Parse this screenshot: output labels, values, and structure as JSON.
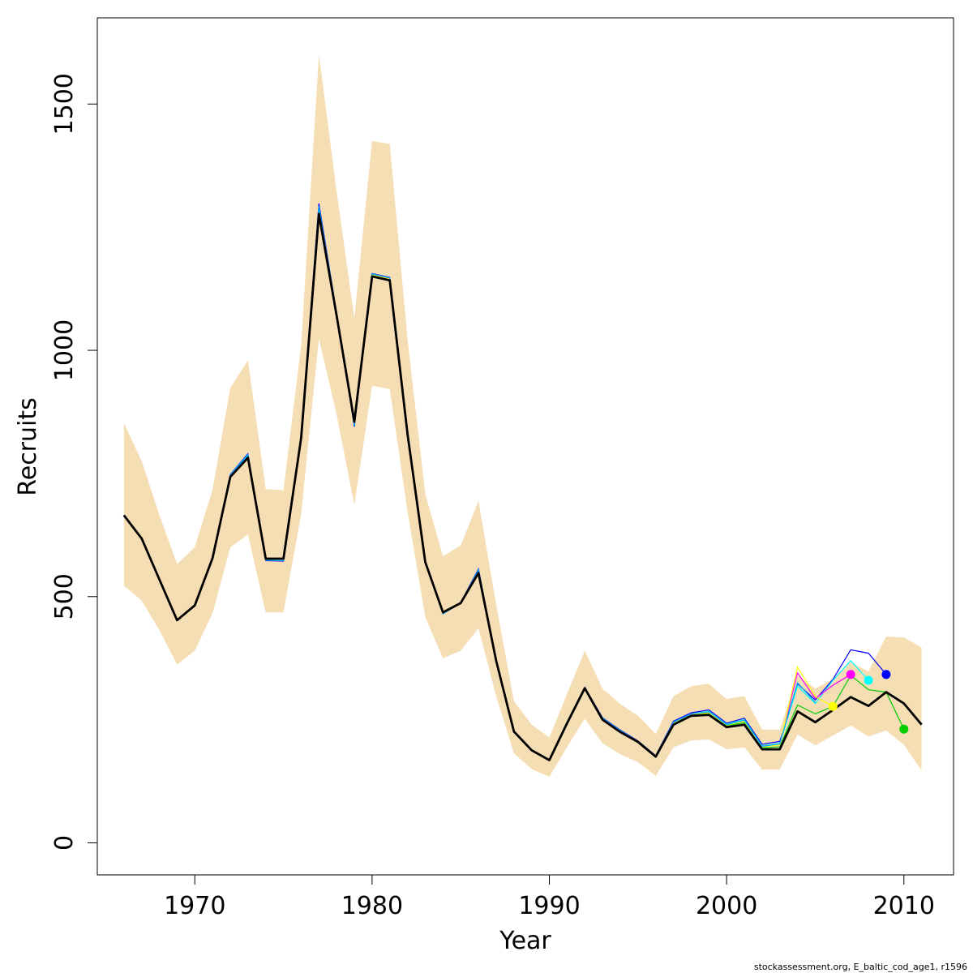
{
  "chart_data": {
    "type": "line",
    "title": "",
    "xlabel": "Year",
    "ylabel": "Recruits",
    "xlim": [
      1964.5,
      2012.8
    ],
    "ylim": [
      -65,
      1675
    ],
    "x_ticks": [
      1970,
      1980,
      1990,
      2000,
      2010
    ],
    "y_ticks": [
      0,
      500,
      1000,
      1500
    ],
    "footer": "stockassessment.org, E_baltic_cod_age1, r1596",
    "colors": {
      "band": "#f5deb3",
      "main": "#000000",
      "peels": [
        "#00cc00",
        "#0000ff",
        "#00ffff",
        "#ff00ff",
        "#ffff00",
        "#00aaff"
      ]
    },
    "years": [
      1966,
      1967,
      1968,
      1969,
      1970,
      1971,
      1972,
      1973,
      1974,
      1975,
      1976,
      1977,
      1978,
      1979,
      1980,
      1981,
      1982,
      1983,
      1984,
      1985,
      1986,
      1987,
      1988,
      1989,
      1990,
      1991,
      1992,
      1993,
      1994,
      1995,
      1996,
      1997,
      1998,
      1999,
      2000,
      2001,
      2002,
      2003,
      2004,
      2005,
      2006,
      2007,
      2008,
      2009,
      2010,
      2011
    ],
    "estimate": [
      665,
      618,
      535,
      452,
      482,
      578,
      743,
      782,
      577,
      577,
      822,
      1277,
      1070,
      855,
      1150,
      1142,
      830,
      570,
      468,
      487,
      548,
      370,
      226,
      188,
      168,
      243,
      314,
      250,
      225,
      205,
      175,
      240,
      258,
      260,
      235,
      240,
      190,
      190,
      267,
      245,
      270,
      296,
      278,
      306,
      283,
      240
    ],
    "upper": [
      852,
      775,
      666,
      566,
      600,
      717,
      923,
      980,
      718,
      716,
      1010,
      1601,
      1322,
      1065,
      1425,
      1419,
      1023,
      708,
      582,
      604,
      694,
      484,
      288,
      240,
      214,
      303,
      390,
      313,
      282,
      258,
      221,
      298,
      318,
      323,
      292,
      298,
      230,
      230,
      340,
      313,
      333,
      367,
      348,
      419,
      417,
      397
    ],
    "lower": [
      522,
      492,
      432,
      362,
      390,
      466,
      600,
      626,
      468,
      468,
      668,
      1024,
      869,
      686,
      928,
      921,
      673,
      458,
      375,
      390,
      436,
      298,
      182,
      150,
      134,
      195,
      252,
      202,
      180,
      164,
      136,
      194,
      208,
      210,
      190,
      194,
      149,
      149,
      220,
      198,
      218,
      238,
      216,
      228,
      199,
      147
    ],
    "peels": [
      {
        "years": [
          1966,
          1967,
          1968,
          1969,
          1970,
          1971,
          1972,
          1973,
          1974,
          1975,
          1976,
          1977,
          1978,
          1979,
          1980,
          1981,
          1982,
          1983,
          1984,
          1985,
          1986,
          1987,
          1988,
          1989,
          1990,
          1991,
          1992,
          1993,
          1994,
          1995,
          1996,
          1997,
          1998,
          1999,
          2000,
          2001,
          2002,
          2003,
          2004,
          2005,
          2006,
          2007,
          2008,
          2009,
          2010
        ],
        "values": [
          665,
          618,
          535,
          452,
          482,
          578,
          745,
          784,
          575,
          575,
          823,
          1280,
          1072,
          853,
          1155,
          1145,
          832,
          570,
          466,
          487,
          550,
          370,
          226,
          188,
          168,
          243,
          315,
          251,
          226,
          205,
          175,
          242,
          260,
          262,
          238,
          244,
          193,
          195,
          280,
          262,
          277,
          340,
          311,
          306,
          231
        ]
      },
      {
        "years": [
          1966,
          1967,
          1968,
          1969,
          1970,
          1971,
          1972,
          1973,
          1974,
          1975,
          1976,
          1977,
          1978,
          1979,
          1980,
          1981,
          1982,
          1983,
          1984,
          1985,
          1986,
          1987,
          1988,
          1989,
          1990,
          1991,
          1992,
          1993,
          1994,
          1995,
          1996,
          1997,
          1998,
          1999,
          2000,
          2001,
          2002,
          2003,
          2004,
          2005,
          2006,
          2007,
          2008,
          2009
        ],
        "values": [
          665,
          618,
          535,
          452,
          482,
          578,
          748,
          790,
          573,
          572,
          825,
          1298,
          1075,
          845,
          1156,
          1148,
          834,
          569,
          465,
          488,
          556,
          372,
          227,
          189,
          169,
          245,
          316,
          254,
          229,
          207,
          177,
          247,
          264,
          270,
          243,
          253,
          200,
          206,
          323,
          290,
          332,
          392,
          385,
          342
        ]
      },
      {
        "years": [
          1966,
          1967,
          1968,
          1969,
          1970,
          1971,
          1972,
          1973,
          1974,
          1975,
          1976,
          1977,
          1978,
          1979,
          1980,
          1981,
          1982,
          1983,
          1984,
          1985,
          1986,
          1987,
          1988,
          1989,
          1990,
          1991,
          1992,
          1993,
          1994,
          1995,
          1996,
          1997,
          1998,
          1999,
          2000,
          2001,
          2002,
          2003,
          2004,
          2005,
          2006,
          2007,
          2008
        ],
        "values": [
          665,
          618,
          535,
          452,
          482,
          578,
          747,
          788,
          574,
          573,
          824,
          1292,
          1074,
          848,
          1155,
          1147,
          833,
          569,
          465,
          487,
          554,
          371,
          226,
          188,
          168,
          244,
          315,
          253,
          228,
          206,
          176,
          245,
          262,
          267,
          241,
          250,
          197,
          202,
          318,
          283,
          330,
          370,
          330
        ]
      },
      {
        "years": [
          1966,
          1967,
          1968,
          1969,
          1970,
          1971,
          1972,
          1973,
          1974,
          1975,
          1976,
          1977,
          1978,
          1979,
          1980,
          1981,
          1982,
          1983,
          1984,
          1985,
          1986,
          1987,
          1988,
          1989,
          1990,
          1991,
          1992,
          1993,
          1994,
          1995,
          1996,
          1997,
          1998,
          1999,
          2000,
          2001,
          2002,
          2003,
          2004,
          2005,
          2006,
          2007
        ],
        "values": [
          665,
          618,
          535,
          452,
          482,
          578,
          746,
          786,
          574,
          574,
          823,
          1288,
          1073,
          850,
          1154,
          1146,
          832,
          570,
          466,
          487,
          552,
          371,
          226,
          188,
          168,
          244,
          315,
          252,
          227,
          206,
          176,
          244,
          262,
          265,
          240,
          248,
          196,
          200,
          345,
          293,
          320,
          342
        ]
      },
      {
        "years": [
          1966,
          1967,
          1968,
          1969,
          1970,
          1971,
          1972,
          1973,
          1974,
          1975,
          1976,
          1977,
          1978,
          1979,
          1980,
          1981,
          1982,
          1983,
          1984,
          1985,
          1986,
          1987,
          1988,
          1989,
          1990,
          1991,
          1992,
          1993,
          1994,
          1995,
          1996,
          1997,
          1998,
          1999,
          2000,
          2001,
          2002,
          2003,
          2004,
          2005,
          2006
        ],
        "values": [
          665,
          618,
          535,
          452,
          482,
          578,
          745,
          785,
          575,
          575,
          823,
          1285,
          1072,
          852,
          1153,
          1145,
          831,
          570,
          466,
          487,
          551,
          371,
          226,
          188,
          168,
          244,
          315,
          252,
          227,
          206,
          176,
          243,
          261,
          264,
          239,
          247,
          195,
          199,
          357,
          297,
          277
        ]
      },
      {
        "years": [
          1966,
          1967,
          1968,
          1969,
          1970,
          1971,
          1972,
          1973,
          1974,
          1975,
          1976,
          1977,
          1978,
          1979,
          1980,
          1981,
          1982,
          1983,
          1984,
          1985,
          1986,
          1987,
          1988,
          1989,
          1990,
          1991,
          1992,
          1993,
          1994,
          1995,
          1996,
          1997,
          1998,
          1999,
          2000,
          2001,
          2002,
          2003,
          2004,
          2005
        ],
        "values": [
          665,
          618,
          535,
          452,
          482,
          578,
          746,
          787,
          574,
          573,
          824,
          1290,
          1074,
          849,
          1155,
          1147,
          833,
          569,
          465,
          487,
          553,
          371,
          226,
          188,
          168,
          244,
          315,
          253,
          228,
          206,
          176,
          245,
          262,
          266,
          240,
          249,
          196,
          201,
          325,
          285
        ]
      }
    ],
    "endpoints": [
      {
        "year": 2010,
        "value": 231,
        "color": "#00cc00"
      },
      {
        "year": 2009,
        "value": 342,
        "color": "#0000ff"
      },
      {
        "year": 2008,
        "value": 330,
        "color": "#00ffff"
      },
      {
        "year": 2007,
        "value": 342,
        "color": "#ff00ff"
      },
      {
        "year": 2006,
        "value": 277,
        "color": "#ffff00"
      }
    ]
  }
}
